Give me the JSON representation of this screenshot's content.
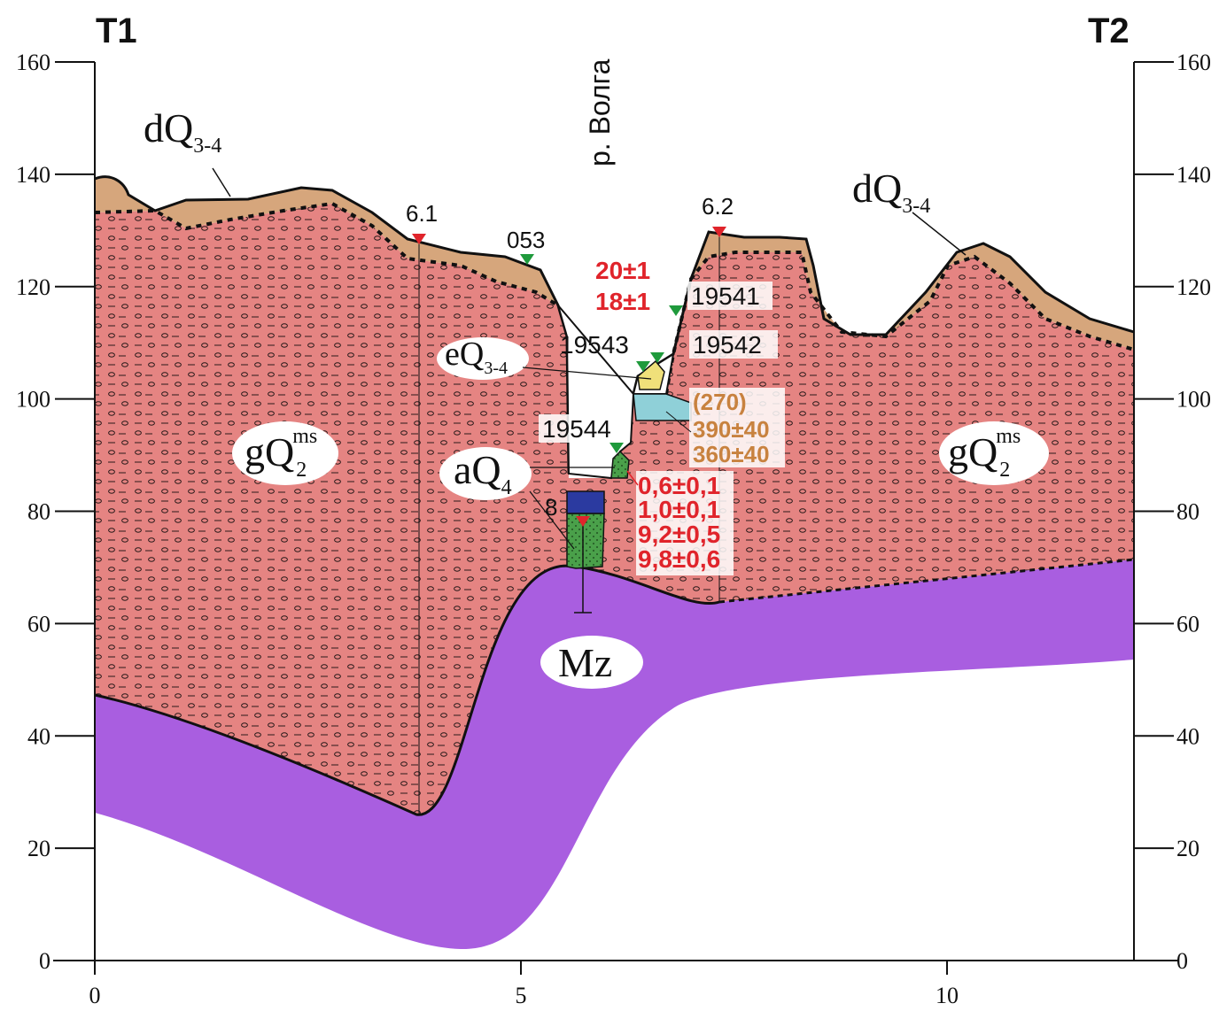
{
  "section": {
    "left_end": "T1",
    "right_end": "T2",
    "river": "р. Волга"
  },
  "axes": {
    "y_ticks": [
      "0",
      "20",
      "40",
      "60",
      "80",
      "100",
      "120",
      "140",
      "160"
    ],
    "x_ticks": [
      "0",
      "5",
      "10"
    ]
  },
  "units": {
    "dQ_left": {
      "main": "dQ",
      "sub": "3-4"
    },
    "dQ_right": {
      "main": "dQ",
      "sub": "3-4"
    },
    "eQ": {
      "main": "eQ",
      "sub": "3-4"
    },
    "aQ": {
      "main": "aQ",
      "sub": "4"
    },
    "gQ_left": {
      "main": "gQ",
      "sub": "2",
      "sup": "ms"
    },
    "gQ_right": {
      "main": "gQ",
      "sub": "2",
      "sup": "ms"
    },
    "Mz": {
      "main": "Mz"
    }
  },
  "wells": [
    "6.1",
    "053",
    "6.2",
    "8"
  ],
  "samples": [
    "19541",
    "19542",
    "19543",
    "19544"
  ],
  "dates_red_upper": [
    "20±1",
    "18±1"
  ],
  "dates_orange": [
    "(270)",
    "390±40",
    "360±40"
  ],
  "dates_red_lower": [
    "0,6±0,1",
    "1,0±0,1",
    "9,2±0,5",
    "9,8±0,6"
  ],
  "colors": {
    "moraine": "#e58482",
    "deluvium": "#d6a67c",
    "mesozoic": "#a95ee0",
    "alluvium": "#4aa04a",
    "channel_fill": "#2b3aa0",
    "lake": "#8fd0d8",
    "marker_red": "#e0242b",
    "marker_green": "#1f9a3c",
    "date_red": "#e0242b",
    "date_orange": "#c8823f"
  }
}
